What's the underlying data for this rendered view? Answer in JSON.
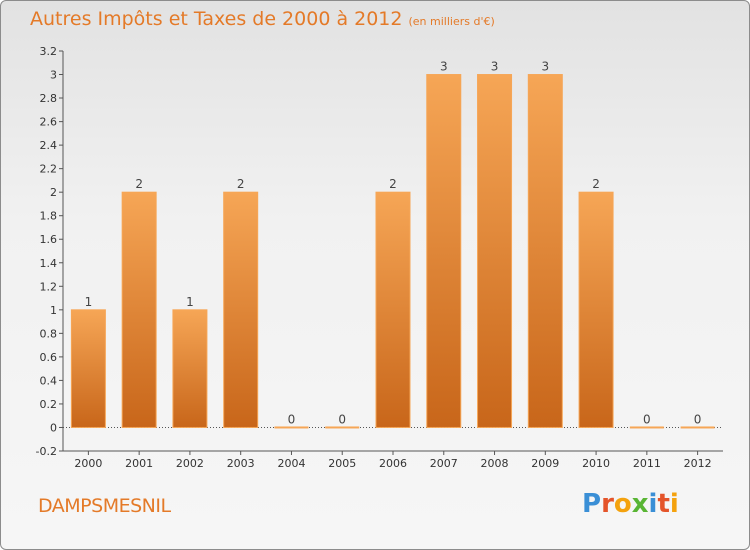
{
  "header": {
    "title": "Autres Impôts et Taxes de 2000 à 2012",
    "unit_note": "(en milliers d'€)"
  },
  "footer": {
    "commune": "DAMPSMESNIL",
    "logo_letters": [
      "P",
      "r",
      "o",
      "x",
      "i",
      "t",
      "i"
    ]
  },
  "colors": {
    "accent": "#e47a28",
    "bar_light": "#f6a656",
    "bar_dark": "#c8661a",
    "axis": "#555555",
    "grid": "#bbbbbb"
  },
  "chart_data": {
    "type": "bar",
    "title": "Autres Impôts et Taxes de 2000 à 2012",
    "subtitle": "(en milliers d'€)",
    "categories": [
      "2000",
      "2001",
      "2002",
      "2003",
      "2004",
      "2005",
      "2006",
      "2007",
      "2008",
      "2009",
      "2010",
      "2011",
      "2012"
    ],
    "values": [
      1,
      2,
      1,
      2,
      0,
      0,
      2,
      3,
      3,
      3,
      2,
      0,
      0
    ],
    "data_labels": [
      "1",
      "2",
      "1",
      "2",
      "0",
      "0",
      "2",
      "3",
      "3",
      "3",
      "2",
      "0",
      "0"
    ],
    "y_ticks": [
      -0.2,
      0,
      0.2,
      0.4,
      0.6,
      0.8,
      1,
      1.2,
      1.4,
      1.6,
      1.8,
      2,
      2.2,
      2.4,
      2.6,
      2.8,
      3,
      3.2
    ],
    "y_tick_labels": [
      "-0.2",
      "0",
      "0.2",
      "0.4",
      "0.6",
      "0.8",
      "1",
      "1.2",
      "1.4",
      "1.6",
      "1.8",
      "2",
      "2.2",
      "2.4",
      "2.6",
      "2.8",
      "3",
      "3.2"
    ],
    "ylim": [
      -0.2,
      3.2
    ],
    "xlabel": "",
    "ylabel": "",
    "grid": false,
    "legend": false
  }
}
